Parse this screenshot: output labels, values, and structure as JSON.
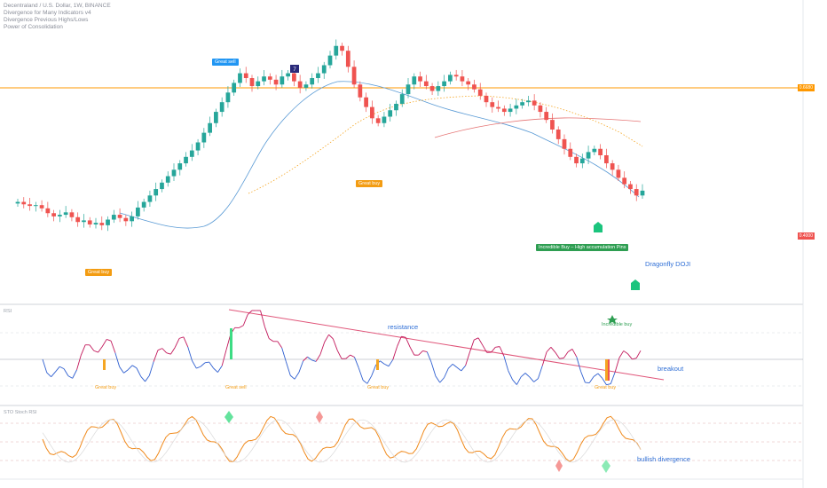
{
  "legend": {
    "symbol": "Decentraland / U.S. Dollar, 1W, BINANCE",
    "line2": "Divergence for Many Indicators v4",
    "line3": "Divergence Previous Highs/Lows",
    "line4": "Power of Consolidation"
  },
  "annotations": {
    "great_sell_top": "Great sell",
    "great_buy_left": "Great buy",
    "great_buy_mid": "Great buy",
    "incredible_buy": "Incredible Buy – High accumulation Pins",
    "dragonfly": "Dragonfly DOJI",
    "resistance": "resistance",
    "breakout": "breakout",
    "rsi_great_buy_1": "Great buy",
    "rsi_great_sell": "Great sell",
    "rsi_great_buy_2": "Great buy",
    "rsi_great_buy_3": "Great buy",
    "rsi_incredible_buy": "Incredible buy",
    "bullish_divergence": "bullish divergence",
    "marker_7": "7"
  },
  "panels": {
    "rsi_title": "RSI",
    "stoch_title": "STO Stoch RSI"
  },
  "price_tags": {
    "horizontal_level": "0.6680",
    "current_price": "0.4000"
  },
  "colors": {
    "up": "#26a69a",
    "down": "#ef5350",
    "horizontal_level": "#ff9800",
    "ma_blue": "#5b9bd5",
    "ma_red": "#e57373",
    "ma_orange_dots": "#f5a623",
    "rsi_line_up": "#c2185b",
    "rsi_line_down": "#2f5fd0",
    "trendline": "#e0567a"
  },
  "chart_data": {
    "type": "candlestick",
    "title": "",
    "timeframe": "1W",
    "candles": [
      [
        100,
        102
      ],
      [
        102,
        99
      ],
      [
        99,
        97
      ],
      [
        97,
        98
      ],
      [
        98,
        94
      ],
      [
        94,
        88
      ],
      [
        88,
        84
      ],
      [
        84,
        86
      ],
      [
        86,
        89
      ],
      [
        89,
        83
      ],
      [
        83,
        77
      ],
      [
        77,
        79
      ],
      [
        79,
        74
      ],
      [
        74,
        76
      ],
      [
        76,
        73
      ],
      [
        73,
        80
      ],
      [
        80,
        86
      ],
      [
        86,
        82
      ],
      [
        82,
        78
      ],
      [
        78,
        84
      ],
      [
        84,
        95
      ],
      [
        95,
        102
      ],
      [
        102,
        110
      ],
      [
        110,
        118
      ],
      [
        118,
        126
      ],
      [
        126,
        134
      ],
      [
        134,
        142
      ],
      [
        142,
        150
      ],
      [
        150,
        158
      ],
      [
        158,
        166
      ],
      [
        166,
        176
      ],
      [
        176,
        188
      ],
      [
        188,
        200
      ],
      [
        200,
        214
      ],
      [
        214,
        226
      ],
      [
        226,
        238
      ],
      [
        238,
        250
      ],
      [
        250,
        262
      ],
      [
        262,
        256
      ],
      [
        256,
        246
      ],
      [
        246,
        252
      ],
      [
        252,
        258
      ],
      [
        258,
        254
      ],
      [
        254,
        248
      ],
      [
        248,
        258
      ],
      [
        258,
        262
      ],
      [
        262,
        252
      ],
      [
        252,
        244
      ],
      [
        244,
        248
      ],
      [
        248,
        256
      ],
      [
        256,
        262
      ],
      [
        262,
        272
      ],
      [
        272,
        284
      ],
      [
        284,
        296
      ],
      [
        296,
        290
      ],
      [
        290,
        270
      ],
      [
        270,
        248
      ],
      [
        248,
        232
      ],
      [
        232,
        220
      ],
      [
        220,
        206
      ],
      [
        206,
        200
      ],
      [
        200,
        208
      ],
      [
        208,
        216
      ],
      [
        216,
        224
      ],
      [
        224,
        236
      ],
      [
        236,
        248
      ],
      [
        248,
        258
      ],
      [
        258,
        252
      ],
      [
        252,
        246
      ],
      [
        246,
        240
      ],
      [
        240,
        246
      ],
      [
        246,
        252
      ],
      [
        252,
        260
      ],
      [
        260,
        258
      ],
      [
        258,
        252
      ],
      [
        252,
        248
      ],
      [
        248,
        242
      ],
      [
        242,
        234
      ],
      [
        234,
        226
      ],
      [
        226,
        220
      ],
      [
        220,
        218
      ],
      [
        218,
        214
      ],
      [
        214,
        218
      ],
      [
        218,
        222
      ],
      [
        222,
        226
      ],
      [
        226,
        228
      ],
      [
        228,
        222
      ],
      [
        222,
        214
      ],
      [
        214,
        204
      ],
      [
        204,
        192
      ],
      [
        192,
        180
      ],
      [
        180,
        168
      ],
      [
        168,
        158
      ],
      [
        158,
        150
      ],
      [
        150,
        156
      ],
      [
        156,
        164
      ],
      [
        164,
        168
      ],
      [
        168,
        160
      ],
      [
        160,
        150
      ],
      [
        150,
        142
      ],
      [
        142,
        132
      ],
      [
        132,
        124
      ],
      [
        124,
        118
      ],
      [
        118,
        110
      ],
      [
        110,
        116
      ]
    ],
    "horizontal_level": 0.668,
    "ylim": [
      0,
      320
    ]
  }
}
